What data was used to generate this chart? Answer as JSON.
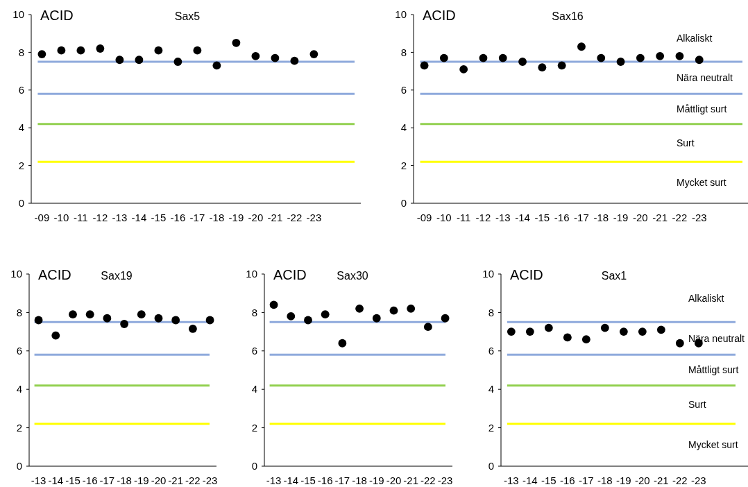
{
  "chart_data": [
    {
      "type": "scatter",
      "title": "Sax5",
      "ylabel": "ACID",
      "categories": [
        "-09",
        "-10",
        "-11",
        "-12",
        "-13",
        "-14",
        "-15",
        "-16",
        "-17",
        "-18",
        "-19",
        "-20",
        "-21",
        "-22",
        "-23"
      ],
      "series": [
        {
          "color": "#000000",
          "values": [
            7.9,
            8.1,
            8.1,
            8.2,
            7.6,
            7.6,
            8.1,
            7.5,
            8.1,
            7.3,
            8.5,
            7.8,
            7.7,
            7.55,
            7.9
          ]
        }
      ],
      "ylim": [
        0,
        10
      ],
      "yticks": [
        0,
        2,
        4,
        6,
        8,
        10
      ],
      "grid": false,
      "marker": "circle",
      "ref_lines": [
        {
          "axis": "y",
          "value": 7.5,
          "color": "#8faadc"
        },
        {
          "axis": "y",
          "value": 5.8,
          "color": "#8faadc"
        },
        {
          "axis": "y",
          "value": 4.2,
          "color": "#92d050"
        },
        {
          "axis": "y",
          "value": 2.2,
          "color": "#ffff00"
        }
      ]
    },
    {
      "type": "scatter",
      "title": "Sax16",
      "ylabel": "ACID",
      "categories": [
        "-09",
        "-10",
        "-11",
        "-12",
        "-13",
        "-14",
        "-15",
        "-16",
        "-17",
        "-18",
        "-19",
        "-20",
        "-21",
        "-22",
        "-23"
      ],
      "series": [
        {
          "color": "#000000",
          "values": [
            7.3,
            7.7,
            7.1,
            7.7,
            7.7,
            7.5,
            7.2,
            7.3,
            8.3,
            7.7,
            7.5,
            7.7,
            7.8,
            7.8,
            7.6
          ]
        }
      ],
      "ylim": [
        0,
        10
      ],
      "yticks": [
        0,
        2,
        4,
        6,
        8,
        10
      ],
      "grid": false,
      "marker": "circle",
      "ref_lines": [
        {
          "axis": "y",
          "value": 7.5,
          "color": "#8faadc"
        },
        {
          "axis": "y",
          "value": 5.8,
          "color": "#8faadc"
        },
        {
          "axis": "y",
          "value": 4.2,
          "color": "#92d050"
        },
        {
          "axis": "y",
          "value": 2.2,
          "color": "#ffff00"
        }
      ],
      "annotations": [
        "Alkaliskt",
        "Nära neutralt",
        "Måttligt surt",
        "Surt",
        "Mycket surt"
      ]
    },
    {
      "type": "scatter",
      "title": "Sax19",
      "ylabel": "ACID",
      "categories": [
        "-13",
        "-14",
        "-15",
        "-16",
        "-17",
        "-18",
        "-19",
        "-20",
        "-21",
        "-22",
        "-23"
      ],
      "series": [
        {
          "color": "#000000",
          "values": [
            7.6,
            6.8,
            7.9,
            7.9,
            7.7,
            7.4,
            7.9,
            7.7,
            7.6,
            7.15,
            7.6
          ]
        }
      ],
      "ylim": [
        0,
        10
      ],
      "yticks": [
        0,
        2,
        4,
        6,
        8,
        10
      ],
      "grid": false,
      "marker": "circle",
      "ref_lines": [
        {
          "axis": "y",
          "value": 7.5,
          "color": "#8faadc"
        },
        {
          "axis": "y",
          "value": 5.8,
          "color": "#8faadc"
        },
        {
          "axis": "y",
          "value": 4.2,
          "color": "#92d050"
        },
        {
          "axis": "y",
          "value": 2.2,
          "color": "#ffff00"
        }
      ]
    },
    {
      "type": "scatter",
      "title": "Sax30",
      "ylabel": "ACID",
      "categories": [
        "-13",
        "-14",
        "-15",
        "-16",
        "-17",
        "-18",
        "-19",
        "-20",
        "-21",
        "-22",
        "-23"
      ],
      "series": [
        {
          "color": "#000000",
          "values": [
            8.4,
            7.8,
            7.6,
            7.9,
            6.4,
            8.2,
            7.7,
            8.1,
            8.2,
            7.25,
            7.7
          ]
        }
      ],
      "ylim": [
        0,
        10
      ],
      "yticks": [
        0,
        2,
        4,
        6,
        8,
        10
      ],
      "grid": false,
      "marker": "circle",
      "ref_lines": [
        {
          "axis": "y",
          "value": 7.5,
          "color": "#8faadc"
        },
        {
          "axis": "y",
          "value": 5.8,
          "color": "#8faadc"
        },
        {
          "axis": "y",
          "value": 4.2,
          "color": "#92d050"
        },
        {
          "axis": "y",
          "value": 2.2,
          "color": "#ffff00"
        }
      ]
    },
    {
      "type": "scatter",
      "title": "Sax1",
      "ylabel": "ACID",
      "categories": [
        "-13",
        "-14",
        "-15",
        "-16",
        "-17",
        "-18",
        "-19",
        "-20",
        "-21",
        "-22",
        "-23"
      ],
      "series": [
        {
          "color": "#000000",
          "values": [
            7.0,
            7.0,
            7.2,
            6.7,
            6.6,
            7.2,
            7.0,
            7.0,
            7.1,
            6.4,
            6.4
          ]
        }
      ],
      "ylim": [
        0,
        10
      ],
      "yticks": [
        0,
        2,
        4,
        6,
        8,
        10
      ],
      "grid": false,
      "marker": "circle",
      "ref_lines": [
        {
          "axis": "y",
          "value": 7.5,
          "color": "#8faadc"
        },
        {
          "axis": "y",
          "value": 5.8,
          "color": "#8faadc"
        },
        {
          "axis": "y",
          "value": 4.2,
          "color": "#92d050"
        },
        {
          "axis": "y",
          "value": 2.2,
          "color": "#ffff00"
        }
      ],
      "annotations": [
        "Alkaliskt",
        "Nära neutralt",
        "Måttligt surt",
        "Surt",
        "Mycket surt"
      ]
    }
  ]
}
